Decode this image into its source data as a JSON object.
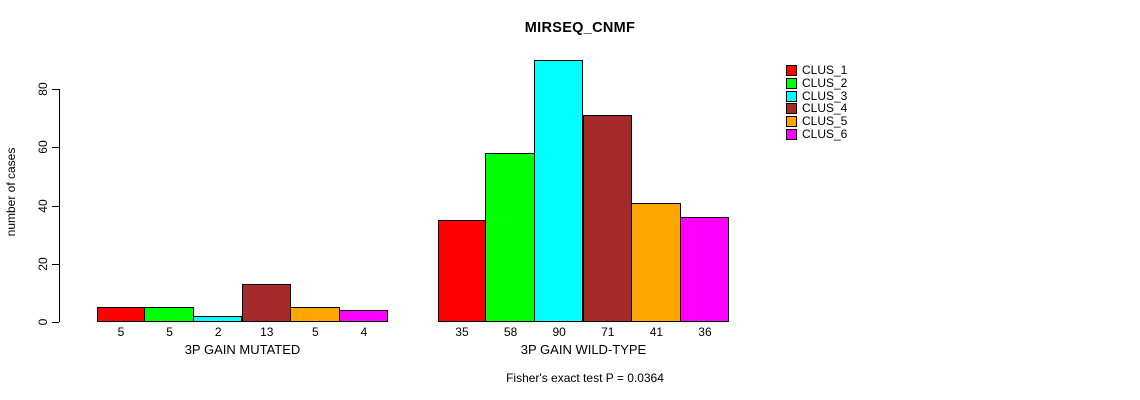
{
  "title": "MIRSEQ_CNMF",
  "footer": "Fisher's exact test P = 0.0364",
  "y_axis": {
    "label": "number of cases",
    "ticks": [
      0,
      20,
      40,
      60,
      80
    ]
  },
  "legend": {
    "items": [
      {
        "label": "CLUS_1",
        "color": "#FF0000"
      },
      {
        "label": "CLUS_2",
        "color": "#00FF00"
      },
      {
        "label": "CLUS_3",
        "color": "#00FFFF"
      },
      {
        "label": "CLUS_4",
        "color": "#A52A2A"
      },
      {
        "label": "CLUS_5",
        "color": "#FFA500"
      },
      {
        "label": "CLUS_6",
        "color": "#FF00FF"
      }
    ]
  },
  "chart_data": {
    "type": "bar",
    "title": "MIRSEQ_CNMF",
    "ylabel": "number of cases",
    "xlabel": "",
    "ylim": [
      0,
      90
    ],
    "yticks": [
      0,
      20,
      40,
      60,
      80
    ],
    "grid": false,
    "legend_position": "top-right",
    "bar_value_labels_shown": true,
    "categories": [
      "3P GAIN MUTATED",
      "3P GAIN WILD-TYPE"
    ],
    "series": [
      {
        "name": "CLUS_1",
        "color": "#FF0000",
        "values": [
          5,
          35
        ]
      },
      {
        "name": "CLUS_2",
        "color": "#00FF00",
        "values": [
          5,
          58
        ]
      },
      {
        "name": "CLUS_3",
        "color": "#00FFFF",
        "values": [
          2,
          90
        ]
      },
      {
        "name": "CLUS_4",
        "color": "#A52A2A",
        "values": [
          13,
          71
        ]
      },
      {
        "name": "CLUS_5",
        "color": "#FFA500",
        "values": [
          5,
          41
        ]
      },
      {
        "name": "CLUS_6",
        "color": "#FF00FF",
        "values": [
          4,
          36
        ]
      }
    ],
    "annotation": "Fisher's exact test P = 0.0364"
  }
}
